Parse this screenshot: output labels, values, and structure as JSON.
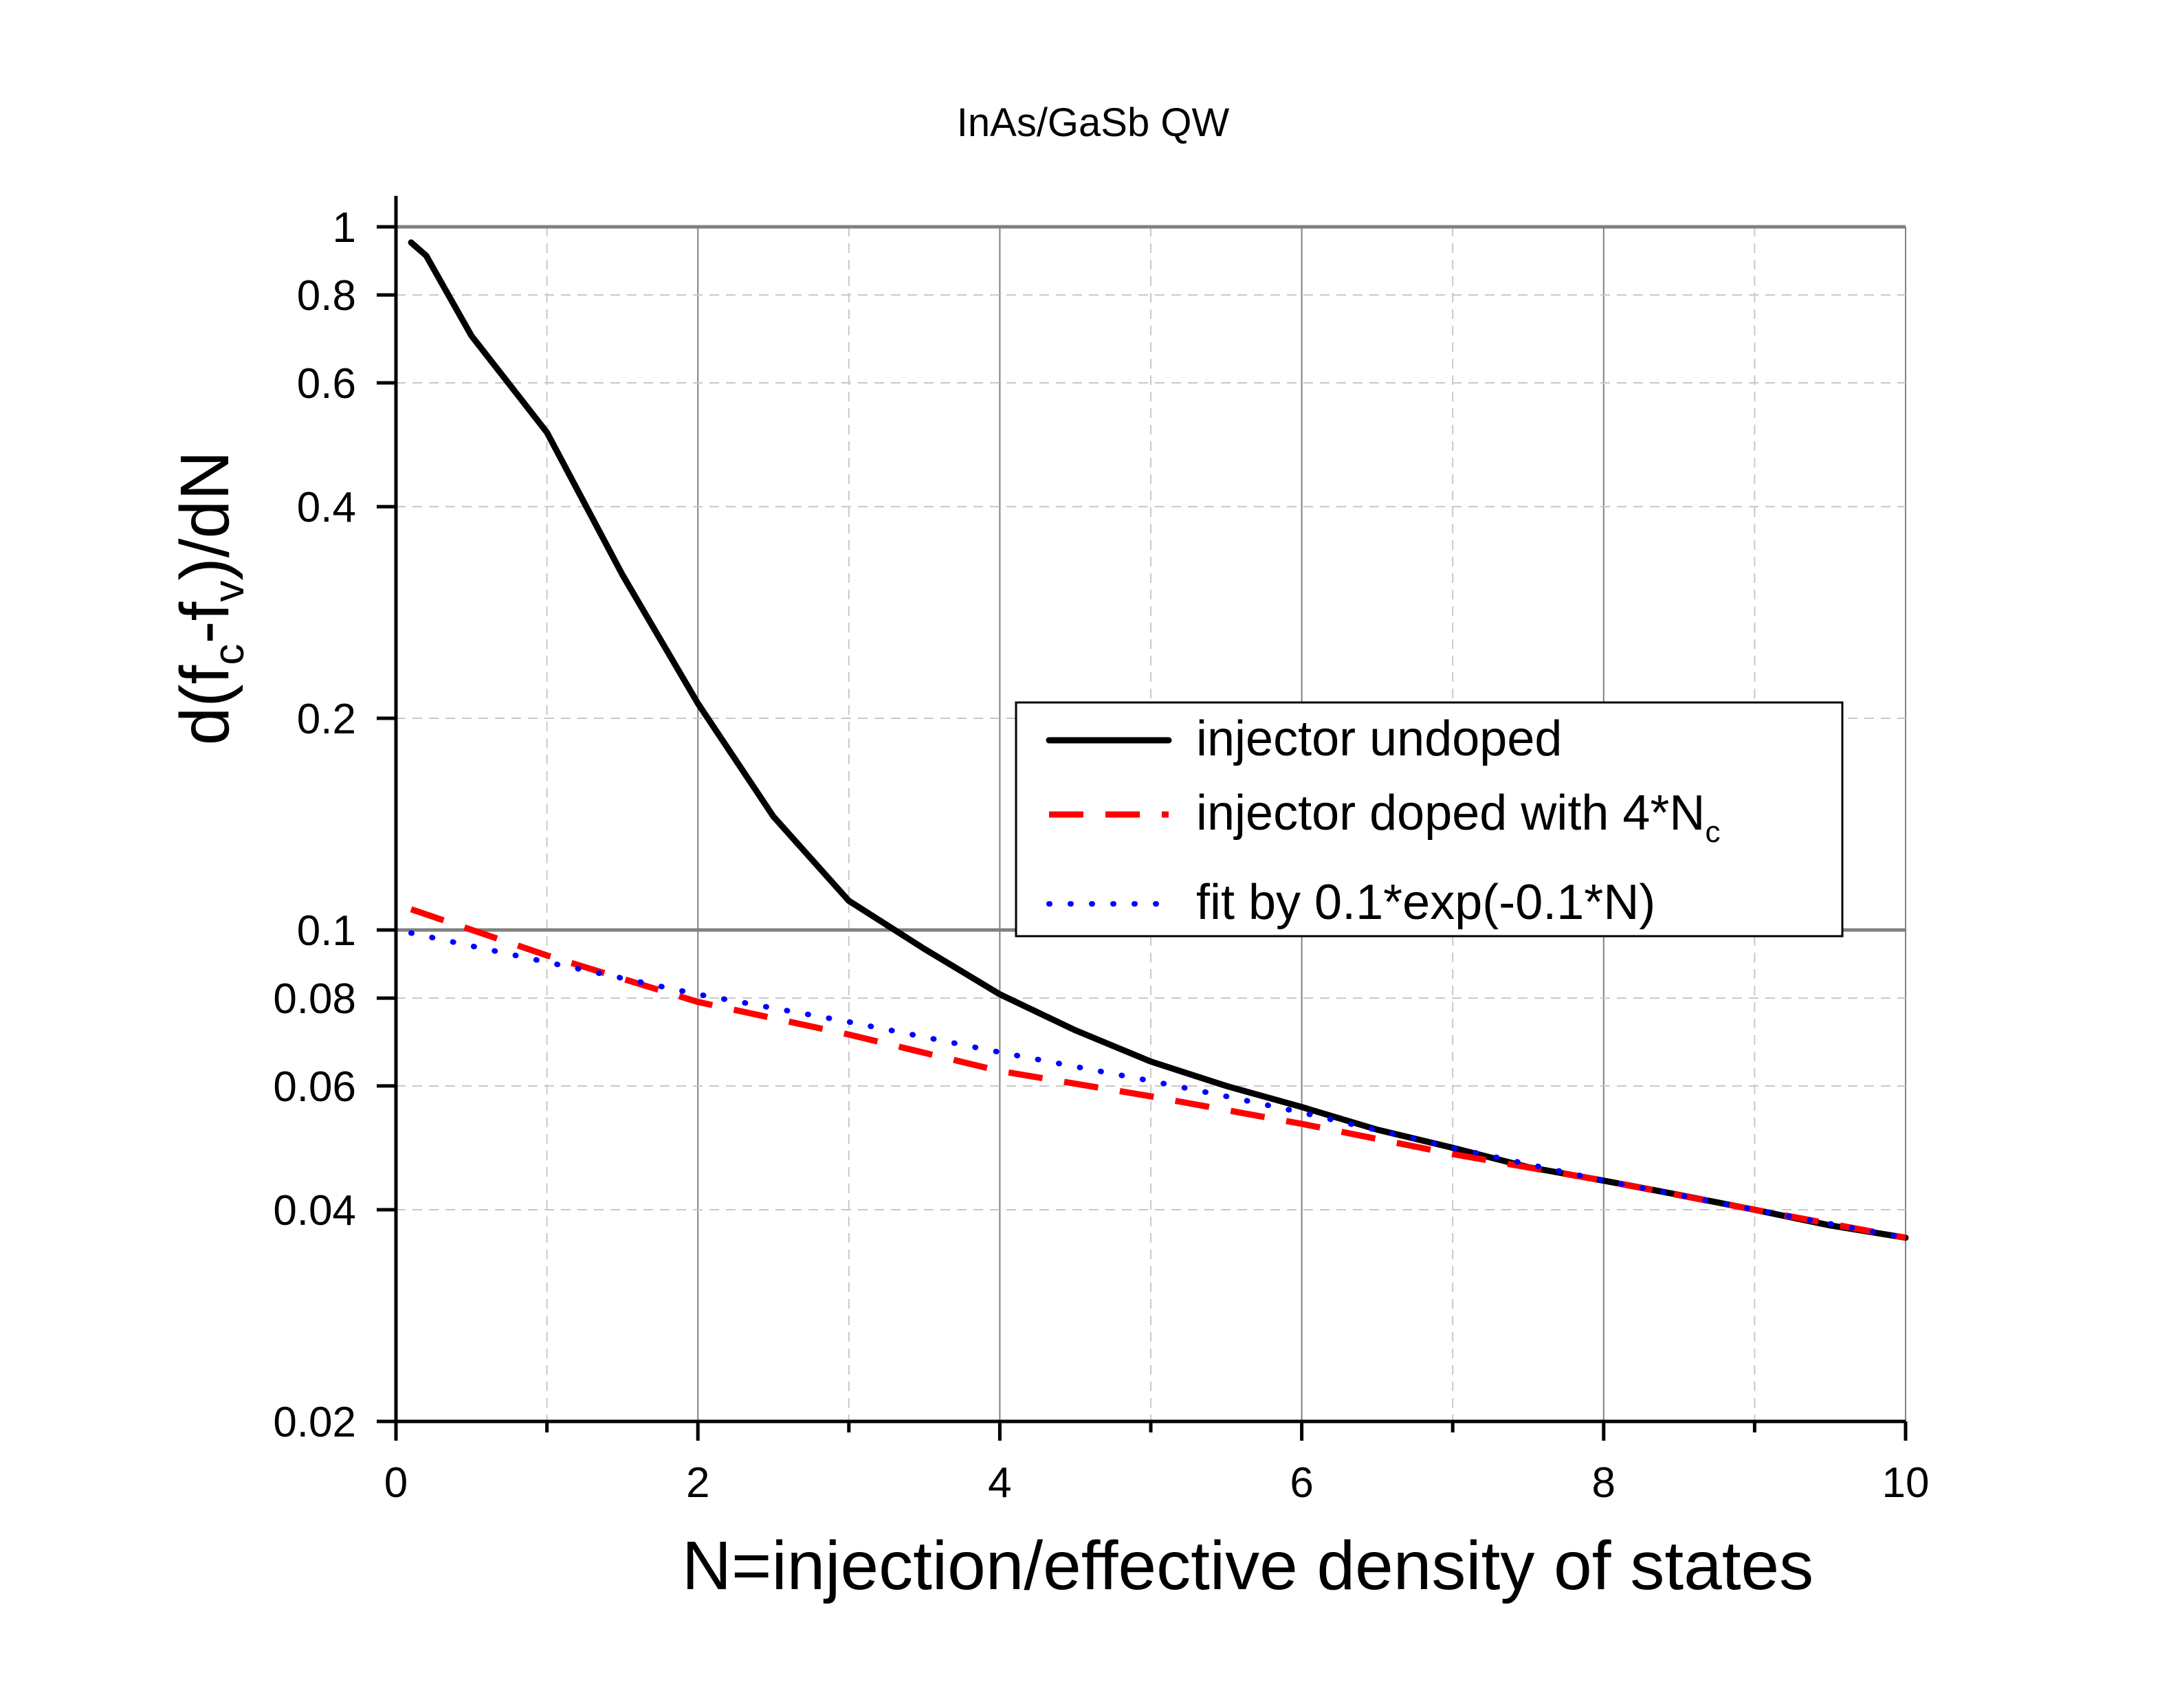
{
  "chart_data": {
    "type": "line",
    "title": "InAs/GaSb QW",
    "xlabel": "N=injection/effective density of states",
    "ylabel": {
      "prefix": "d(f",
      "sub1": "c",
      "mid": "-f",
      "sub2": "v",
      "suffix": ")/dN"
    },
    "xlim": [
      0,
      10
    ],
    "ylim": [
      0.02,
      1
    ],
    "yscale": "log",
    "x_ticks": [
      "0",
      "2",
      "4",
      "6",
      "8",
      "10"
    ],
    "x_tick_values": [
      0,
      2,
      4,
      6,
      8,
      10
    ],
    "x_minor_ticks": [
      1,
      3,
      5,
      7,
      9
    ],
    "y_ticks": [
      "0.02",
      "0.04",
      "0.06",
      "0.08",
      "0.1",
      "0.2",
      "0.4",
      "0.6",
      "0.8",
      "1"
    ],
    "y_tick_values": [
      0.02,
      0.04,
      0.06,
      0.08,
      0.1,
      0.2,
      0.4,
      0.6,
      0.8,
      1
    ],
    "grid": true,
    "legend_position": "center-right",
    "series": [
      {
        "name": "injector undoped",
        "color": "#000000",
        "style": "solid",
        "x": [
          0.1,
          0.2,
          0.5,
          1.0,
          1.5,
          2.0,
          2.5,
          3.0,
          3.5,
          4.0,
          4.5,
          5.0,
          5.5,
          6.0,
          6.5,
          7.0,
          7.5,
          8.0,
          8.5,
          9.0,
          9.5,
          10.0
        ],
        "y": [
          0.95,
          0.91,
          0.7,
          0.51,
          0.32,
          0.21,
          0.145,
          0.11,
          0.094,
          0.081,
          0.072,
          0.065,
          0.06,
          0.056,
          0.052,
          0.049,
          0.046,
          0.044,
          0.042,
          0.04,
          0.038,
          0.0365
        ]
      },
      {
        "name": "injector doped with 4*N",
        "name_sub": "c",
        "color": "#ff0000",
        "style": "dashed",
        "x": [
          0.1,
          1.0,
          2.0,
          3.0,
          4.0,
          5.0,
          6.0,
          7.0,
          8.0,
          9.0,
          10.0
        ],
        "y": [
          0.107,
          0.092,
          0.079,
          0.071,
          0.063,
          0.058,
          0.053,
          0.048,
          0.044,
          0.04,
          0.0365
        ]
      },
      {
        "name": "fit by 0.1*exp(-0.1*N)",
        "color": "#0000ff",
        "style": "dotted",
        "x": [
          0.1,
          1.0,
          2.0,
          3.0,
          4.0,
          5.0,
          5.5,
          6.0,
          7.0,
          8.0,
          9.0,
          10.0
        ],
        "y": [
          0.099,
          0.09,
          0.081,
          0.074,
          0.067,
          0.061,
          0.058,
          0.055,
          0.049,
          0.044,
          0.04,
          0.0365
        ]
      }
    ]
  }
}
